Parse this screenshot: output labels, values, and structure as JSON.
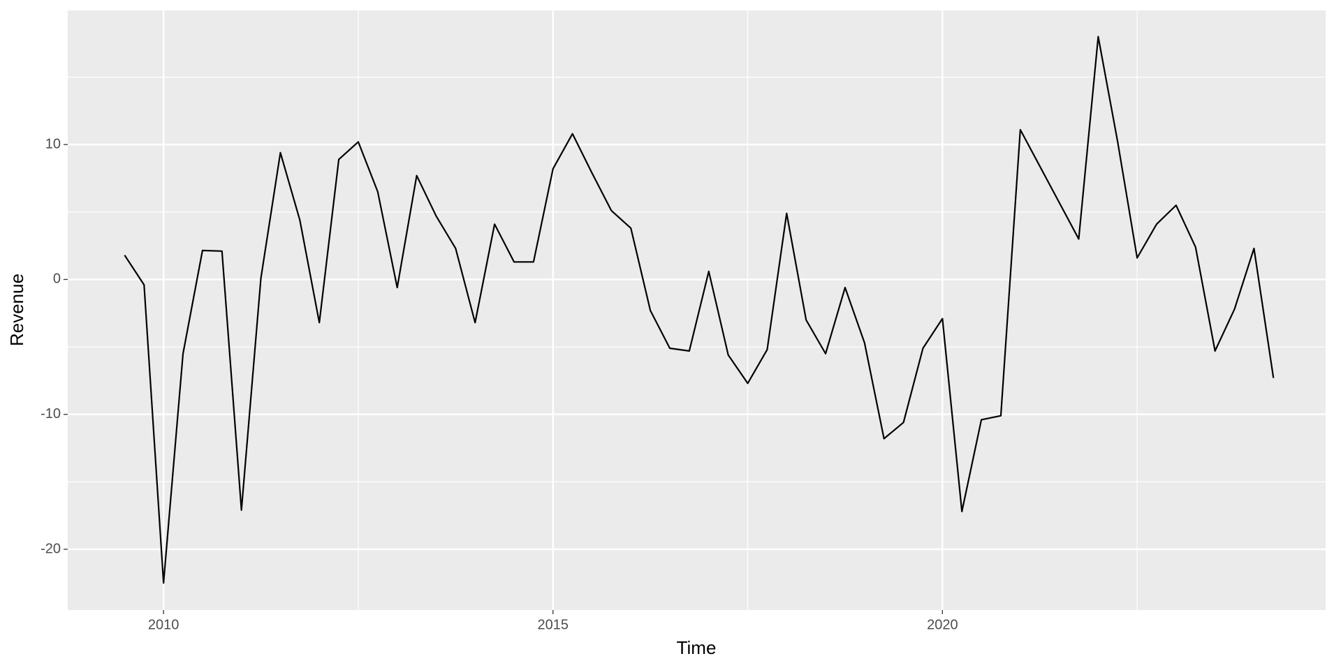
{
  "chart_data": {
    "type": "line",
    "x_label": "Time",
    "y_label": "Revenue",
    "x": [
      2009.5,
      2009.75,
      2010,
      2010.25,
      2010.5,
      2010.75,
      2011,
      2011.25,
      2011.5,
      2011.75,
      2012,
      2012.25,
      2012.5,
      2012.75,
      2013,
      2013.25,
      2013.5,
      2013.75,
      2014,
      2014.25,
      2014.5,
      2014.75,
      2015,
      2015.25,
      2015.5,
      2015.75,
      2016,
      2016.25,
      2016.5,
      2016.75,
      2017,
      2017.25,
      2017.5,
      2017.75,
      2018,
      2018.25,
      2018.5,
      2018.75,
      2019,
      2019.25,
      2019.5,
      2019.75,
      2020,
      2020.25,
      2020.5,
      2020.75,
      2021,
      2021.25,
      2021.5,
      2021.75,
      2022,
      2022.25,
      2022.5,
      2022.75,
      2023,
      2023.25,
      2023.5,
      2023.75,
      2024,
      2024.25
    ],
    "values": [
      1.8,
      -0.4,
      -22.5,
      -5.5,
      2.15,
      2.1,
      -17.1,
      0.1,
      9.4,
      4.4,
      -3.2,
      8.9,
      10.2,
      6.5,
      -0.6,
      7.7,
      4.7,
      2.3,
      -3.2,
      4.1,
      1.3,
      1.3,
      8.2,
      10.8,
      7.9,
      5.1,
      3.8,
      -2.3,
      -5.1,
      -5.3,
      0.6,
      -5.6,
      -7.7,
      -5.2,
      4.9,
      -3.0,
      -5.5,
      -0.6,
      -4.7,
      -11.8,
      -10.6,
      -5.1,
      -2.9,
      -17.2,
      -10.4,
      -10.1,
      11.1,
      8.4,
      5.7,
      3.0,
      18.0,
      10.2,
      1.6,
      4.1,
      5.5,
      2.4,
      -5.3,
      -2.2,
      2.3,
      -7.3
    ],
    "color": "#000000",
    "xlim": [
      2008.77,
      2024.92
    ],
    "xticks": [
      2010,
      2015,
      2020
    ],
    "ylim": [
      -24.5,
      19.94
    ],
    "yticks": [
      -20,
      -10,
      0,
      10
    ],
    "grid": true
  }
}
